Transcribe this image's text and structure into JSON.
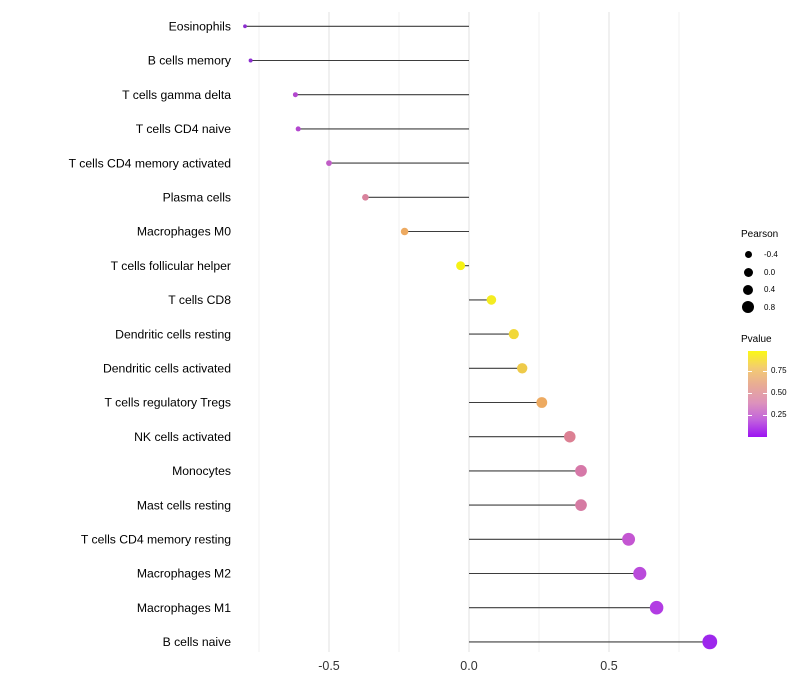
{
  "chart_data": {
    "type": "lollipop",
    "orientation": "horizontal",
    "title": "",
    "xlabel": "",
    "ylabel": "",
    "grid": "vertical-only",
    "x_axis": {
      "tick_values": [
        -0.5,
        0.0,
        0.5
      ],
      "tick_labels": [
        "-0.5",
        "0.0",
        "0.5"
      ],
      "minor_tick_values": [
        -0.75,
        -0.25,
        0.25,
        0.75
      ],
      "range": [
        -0.83,
        0.92
      ]
    },
    "baseline_value": 0,
    "points": [
      {
        "label": "Eosinophils",
        "pearson": -0.8,
        "pvalue_approx": 0.05,
        "color": "#8d2ed0"
      },
      {
        "label": "B cells memory",
        "pearson": -0.78,
        "pvalue_approx": 0.05,
        "color": "#8d2ed0"
      },
      {
        "label": "T cells gamma delta",
        "pearson": -0.62,
        "pvalue_approx": 0.15,
        "color": "#b347cf"
      },
      {
        "label": "T cells CD4 naive",
        "pearson": -0.61,
        "pvalue_approx": 0.15,
        "color": "#b347cf"
      },
      {
        "label": "T cells CD4 memory activated",
        "pearson": -0.5,
        "pvalue_approx": 0.2,
        "color": "#c05dc6"
      },
      {
        "label": "Plasma cells",
        "pearson": -0.37,
        "pvalue_approx": 0.4,
        "color": "#d9839d"
      },
      {
        "label": "Macrophages M0",
        "pearson": -0.23,
        "pvalue_approx": 0.6,
        "color": "#edaa61"
      },
      {
        "label": "T cells follicular helper",
        "pearson": -0.03,
        "pvalue_approx": 0.92,
        "color": "#f6f214"
      },
      {
        "label": "T cells CD8",
        "pearson": 0.08,
        "pvalue_approx": 0.88,
        "color": "#f4ec22"
      },
      {
        "label": "Dendritic cells resting",
        "pearson": 0.16,
        "pvalue_approx": 0.8,
        "color": "#f1d839"
      },
      {
        "label": "Dendritic cells activated",
        "pearson": 0.19,
        "pvalue_approx": 0.75,
        "color": "#eeca49"
      },
      {
        "label": "T cells regulatory  Tregs",
        "pearson": 0.26,
        "pvalue_approx": 0.6,
        "color": "#edaa61"
      },
      {
        "label": "NK cells activated",
        "pearson": 0.36,
        "pvalue_approx": 0.42,
        "color": "#dc8093"
      },
      {
        "label": "Monocytes",
        "pearson": 0.4,
        "pvalue_approx": 0.35,
        "color": "#d678a8"
      },
      {
        "label": "Mast cells resting",
        "pearson": 0.4,
        "pvalue_approx": 0.35,
        "color": "#d67ba3"
      },
      {
        "label": "T cells CD4 memory resting",
        "pearson": 0.57,
        "pvalue_approx": 0.17,
        "color": "#c456d2"
      },
      {
        "label": "Macrophages M2",
        "pearson": 0.61,
        "pvalue_approx": 0.13,
        "color": "#ba4bdb"
      },
      {
        "label": "Macrophages M1",
        "pearson": 0.67,
        "pvalue_approx": 0.09,
        "color": "#b23ce3"
      },
      {
        "label": "B cells naive",
        "pearson": 0.86,
        "pvalue_approx": 0.04,
        "color": "#9d27ec"
      }
    ],
    "legend_size": {
      "title": "Pearson",
      "labels": [
        "-0.4",
        "0.0",
        "0.4",
        "0.8"
      ],
      "values": [
        -0.4,
        0.0,
        0.4,
        0.8
      ],
      "dot_color": "#000000"
    },
    "legend_color": {
      "title": "Pvalue",
      "labels": [
        "0.75",
        "0.50",
        "0.25"
      ],
      "gradient_top_to_bottom": [
        "#fbf815",
        "#f3cb72",
        "#e8ab96",
        "#dd93bb",
        "#c263dd",
        "#9c13f2"
      ]
    },
    "colors": {
      "stick": "#3d3d3d",
      "major_gridline": "#e2e2e2",
      "minor_gridline": "#f1f1f1",
      "axis_text": "#333333",
      "category_text": "#000000"
    }
  }
}
